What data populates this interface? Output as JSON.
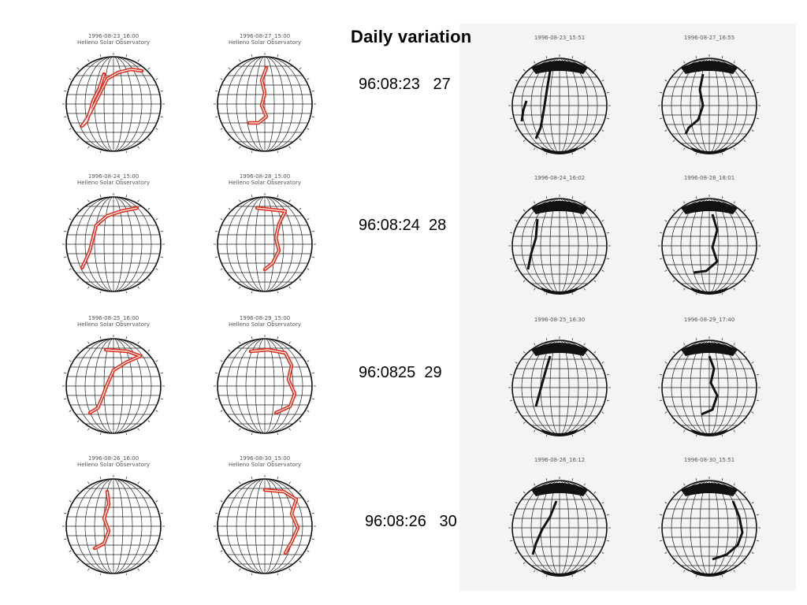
{
  "title": "Daily variation",
  "date_labels": [
    "96:08:23   27",
    "96:08:24  28",
    "96:0825  29",
    "96:08:26   30"
  ],
  "left_globes": [
    {
      "caption_line1": "1996-08-23_16:00",
      "caption_line2": "Helleno Solar Observatory",
      "trace_color": "#e0301e"
    },
    {
      "caption_line1": "1996-08-27_15:00",
      "caption_line2": "Helleno Solar Observatory",
      "trace_color": "#e0301e"
    },
    {
      "caption_line1": "1996-08-24_15:00",
      "caption_line2": "Helleno Solar Observatory",
      "trace_color": "#e0301e"
    },
    {
      "caption_line1": "1996-08-28_15:00",
      "caption_line2": "Helleno Solar Observatory",
      "trace_color": "#e0301e"
    },
    {
      "caption_line1": "1996-08-25_16:00",
      "caption_line2": "Helleno Solar Observatory",
      "trace_color": "#e0301e"
    },
    {
      "caption_line1": "1996-08-29_15:00",
      "caption_line2": "Helleno Solar Observatory",
      "trace_color": "#e0301e"
    },
    {
      "caption_line1": "1996-08-26_16:00",
      "caption_line2": "Helleno Solar Observatory",
      "trace_color": "#e0301e"
    },
    {
      "caption_line1": "1996-08-30_15:00",
      "caption_line2": "Helleno Solar Observatory",
      "trace_color": "#e0301e"
    }
  ],
  "right_globes": [
    {
      "caption_line1": "1996-08-23_15:51"
    },
    {
      "caption_line1": "1996-08-27_16:55"
    },
    {
      "caption_line1": "1996-08-24_16:02"
    },
    {
      "caption_line1": "1996-08-28_18:01"
    },
    {
      "caption_line1": "1996-08-25_16:30"
    },
    {
      "caption_line1": "1996-08-29_17:40"
    },
    {
      "caption_line1": "1996-08-26_16:12"
    },
    {
      "caption_line1": "1996-08-30_15:51"
    }
  ]
}
